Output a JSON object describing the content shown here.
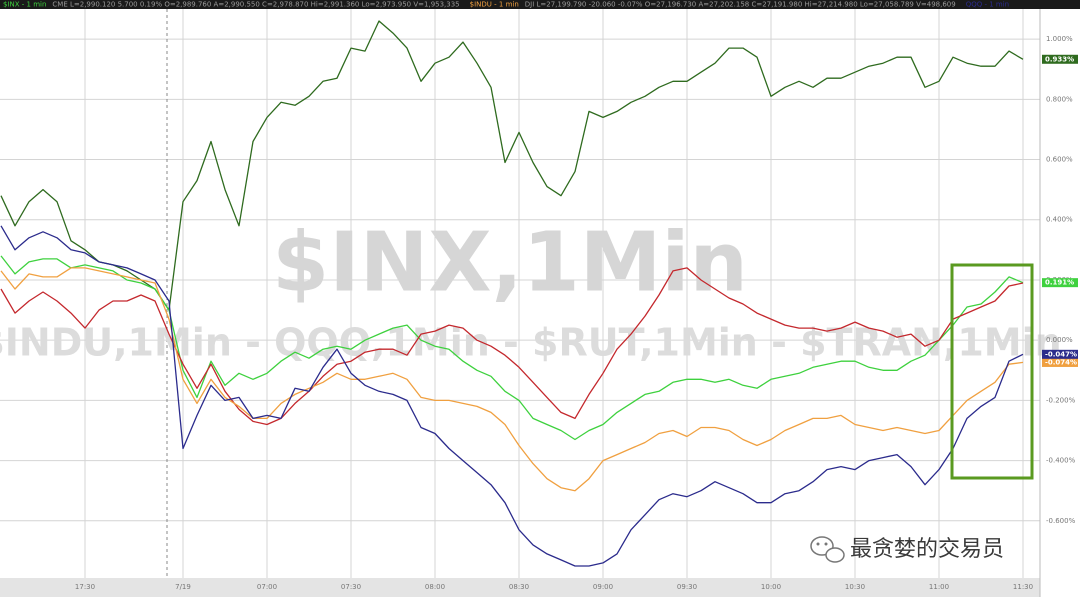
{
  "chart_data": {
    "type": "line",
    "watermark": "$INX,1Min",
    "watermark_sub": "$INDU,1Min - QQQ,1Min - $RUT,1Min - $TRAN,1Min",
    "brand": "最贪婪的交易员",
    "categories": [
      null,
      null,
      null,
      null,
      null,
      null,
      "17:30",
      null,
      null,
      null,
      null,
      null,
      null,
      "7/19",
      null,
      null,
      null,
      null,
      null,
      "07:00",
      null,
      null,
      null,
      null,
      null,
      "07:30",
      null,
      null,
      null,
      null,
      null,
      "08:00",
      null,
      null,
      null,
      null,
      null,
      "08:30",
      null,
      null,
      null,
      null,
      null,
      "09:00",
      null,
      null,
      null,
      null,
      null,
      "09:30",
      null,
      null,
      null,
      null,
      null,
      "10:00",
      null,
      null,
      null,
      null,
      null,
      "10:30",
      null,
      null,
      null,
      null,
      null,
      "11:00",
      null,
      null,
      null,
      null,
      null,
      "11:30"
    ],
    "ylim": [
      -0.79,
      1.1
    ],
    "yticks": [
      {
        "value": 1,
        "label": "1.000%"
      },
      {
        "value": 0.8,
        "label": "0.800%"
      },
      {
        "value": 0.6,
        "label": "0.600%"
      },
      {
        "value": 0.4,
        "label": "0.400%"
      },
      {
        "value": 0.2,
        "label": "0.200%"
      },
      {
        "value": 0,
        "label": "0.000%"
      },
      {
        "value": -0.2,
        "label": "-0.200%"
      },
      {
        "value": -0.4,
        "label": "-0.400%"
      },
      {
        "value": -0.6,
        "label": "-0.600%"
      }
    ],
    "grid": true,
    "series": [
      {
        "color": "#2f6b1f",
        "end_label": "0.933%",
        "values": [
          0.48,
          0.38,
          0.46,
          0.5,
          0.46,
          0.33,
          0.3,
          0.26,
          0.25,
          0.23,
          0.2,
          0.17,
          0.1,
          0.46,
          0.53,
          0.66,
          0.5,
          0.38,
          0.66,
          0.74,
          0.79,
          0.78,
          0.81,
          0.86,
          0.87,
          0.97,
          0.96,
          1.06,
          1.02,
          0.97,
          0.86,
          0.92,
          0.94,
          0.99,
          0.92,
          0.84,
          0.59,
          0.69,
          0.59,
          0.51,
          0.48,
          0.56,
          0.76,
          0.74,
          0.76,
          0.79,
          0.81,
          0.84,
          0.86,
          0.86,
          0.89,
          0.92,
          0.97,
          0.97,
          0.94,
          0.81,
          0.84,
          0.86,
          0.84,
          0.87,
          0.87,
          0.89,
          0.91,
          0.92,
          0.94,
          0.94,
          0.84,
          0.86,
          0.94,
          0.92,
          0.91,
          0.91,
          0.96,
          0.933
        ]
      },
      {
        "name": "$INX - 1 min",
        "quote": "CME  L=2,990.120  5.700  0.19%  O=2,989.760  A=2,990.550  C=2,978.870  Hi=2,991.360  Lo=2,973.950  V=1,953,335",
        "color": "#3ed13e",
        "end_label": "0.191%",
        "values": [
          0.28,
          0.22,
          0.26,
          0.27,
          0.27,
          0.24,
          0.25,
          0.24,
          0.23,
          0.2,
          0.19,
          0.17,
          0.1,
          -0.1,
          -0.19,
          -0.07,
          -0.15,
          -0.11,
          -0.13,
          -0.11,
          -0.07,
          -0.04,
          -0.06,
          -0.03,
          -0.02,
          -0.03,
          0.0,
          0.02,
          0.04,
          0.05,
          0.0,
          -0.02,
          -0.03,
          -0.07,
          -0.1,
          -0.12,
          -0.17,
          -0.2,
          -0.26,
          -0.28,
          -0.3,
          -0.33,
          -0.3,
          -0.28,
          -0.24,
          -0.21,
          -0.18,
          -0.17,
          -0.14,
          -0.13,
          -0.13,
          -0.14,
          -0.13,
          -0.15,
          -0.16,
          -0.13,
          -0.12,
          -0.11,
          -0.09,
          -0.08,
          -0.07,
          -0.07,
          -0.09,
          -0.1,
          -0.1,
          -0.07,
          -0.05,
          0.0,
          0.05,
          0.11,
          0.12,
          0.16,
          0.21,
          0.191
        ]
      },
      {
        "color": "#c4282d",
        "values": [
          0.17,
          0.09,
          0.13,
          0.16,
          0.13,
          0.09,
          0.04,
          0.1,
          0.13,
          0.13,
          0.15,
          0.13,
          0.02,
          -0.08,
          -0.16,
          -0.08,
          -0.17,
          -0.23,
          -0.27,
          -0.28,
          -0.26,
          -0.21,
          -0.17,
          -0.12,
          -0.08,
          -0.07,
          -0.04,
          -0.03,
          -0.03,
          -0.05,
          0.02,
          0.03,
          0.05,
          0.04,
          0.0,
          -0.02,
          -0.05,
          -0.09,
          -0.14,
          -0.19,
          -0.24,
          -0.26,
          -0.18,
          -0.11,
          -0.03,
          0.02,
          0.08,
          0.15,
          0.23,
          0.24,
          0.2,
          0.17,
          0.14,
          0.12,
          0.09,
          0.07,
          0.05,
          0.04,
          0.04,
          0.03,
          0.04,
          0.06,
          0.04,
          0.03,
          0.01,
          0.02,
          -0.02,
          0.0,
          0.07,
          0.09,
          0.11,
          0.13,
          0.18,
          0.19
        ]
      },
      {
        "name": "$INDU - 1 min",
        "quote": "DJI  L=27,199.790  -20.060  -0.07%  O=27,196.730  A=27,202.158  C=27,191.980  Hi=27,214.980  Lo=27,058.789  V=498,609",
        "color": "#f0a040",
        "end_label": "-0.074%",
        "values": [
          0.23,
          0.17,
          0.22,
          0.21,
          0.21,
          0.24,
          0.24,
          0.23,
          0.22,
          0.21,
          0.2,
          0.19,
          0.07,
          -0.13,
          -0.21,
          -0.13,
          -0.19,
          -0.22,
          -0.26,
          -0.26,
          -0.21,
          -0.18,
          -0.16,
          -0.14,
          -0.11,
          -0.13,
          -0.13,
          -0.12,
          -0.11,
          -0.13,
          -0.19,
          -0.2,
          -0.2,
          -0.21,
          -0.22,
          -0.24,
          -0.28,
          -0.35,
          -0.41,
          -0.46,
          -0.49,
          -0.5,
          -0.46,
          -0.4,
          -0.38,
          -0.36,
          -0.34,
          -0.31,
          -0.3,
          -0.32,
          -0.29,
          -0.29,
          -0.3,
          -0.33,
          -0.35,
          -0.33,
          -0.3,
          -0.28,
          -0.26,
          -0.26,
          -0.25,
          -0.28,
          -0.29,
          -0.3,
          -0.29,
          -0.3,
          -0.31,
          -0.3,
          -0.25,
          -0.2,
          -0.17,
          -0.14,
          -0.08,
          -0.074
        ]
      },
      {
        "name": "QQQ - 1 min",
        "color": "#2b2b8c",
        "end_label": "-0.047%",
        "values": [
          0.38,
          0.3,
          0.34,
          0.36,
          0.34,
          0.3,
          0.29,
          0.26,
          0.25,
          0.24,
          0.22,
          0.2,
          0.13,
          -0.36,
          -0.25,
          -0.15,
          -0.2,
          -0.19,
          -0.26,
          -0.25,
          -0.26,
          -0.16,
          -0.17,
          -0.09,
          -0.03,
          -0.11,
          -0.15,
          -0.17,
          -0.18,
          -0.2,
          -0.29,
          -0.31,
          -0.36,
          -0.4,
          -0.44,
          -0.48,
          -0.54,
          -0.63,
          -0.68,
          -0.71,
          -0.73,
          -0.75,
          -0.75,
          -0.74,
          -0.71,
          -0.63,
          -0.58,
          -0.53,
          -0.51,
          -0.52,
          -0.5,
          -0.47,
          -0.49,
          -0.51,
          -0.54,
          -0.54,
          -0.51,
          -0.5,
          -0.47,
          -0.43,
          -0.42,
          -0.43,
          -0.4,
          -0.39,
          -0.38,
          -0.42,
          -0.48,
          -0.43,
          -0.36,
          -0.26,
          -0.22,
          -0.19,
          -0.07,
          -0.047
        ]
      }
    ]
  }
}
